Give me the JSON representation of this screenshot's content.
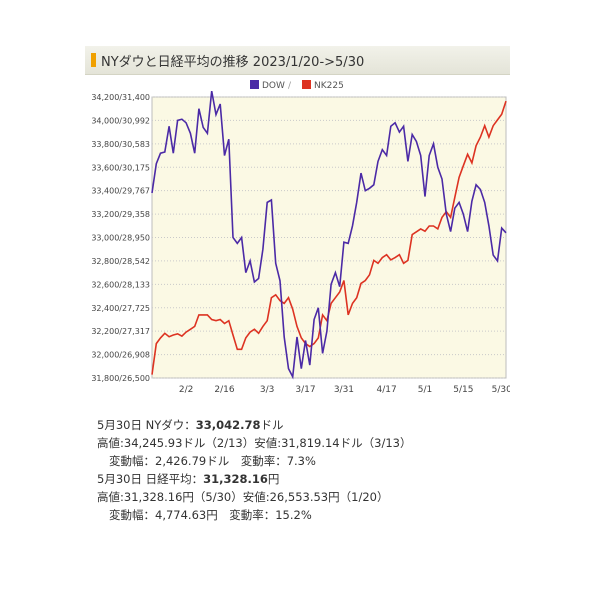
{
  "header": {
    "title": "NYダウと日経平均の推移 2023/1/20->5/30"
  },
  "colors": {
    "dow": "#4b2aa6",
    "nk": "#dd3322",
    "plot_bg": "#fbf9e4",
    "grid": "#c9c9c9"
  },
  "chart_data": {
    "type": "line",
    "legend": {
      "placement": "top-center",
      "dow_label": "DOW",
      "separator": "/",
      "nk_label": "NK225"
    },
    "y_ticks": [
      "31,800/26,500",
      "32,000/26,908",
      "32,200/27,317",
      "32,400/27,725",
      "32,600/28,133",
      "32,800/28,542",
      "33,000/28,950",
      "33,200/29,358",
      "33,400/29,767",
      "33,600/30,175",
      "33,800/30,583",
      "34,000/30,992",
      "34,200/31,400"
    ],
    "ylim": [
      31800,
      34200
    ],
    "x_ticks": [
      "2/2",
      "2/16",
      "3/3",
      "3/17",
      "3/31",
      "4/17",
      "5/1",
      "5/15",
      "5/30"
    ],
    "x_tick_index": [
      8,
      17,
      27,
      36,
      45,
      55,
      64,
      73,
      82
    ],
    "series": [
      {
        "name": "DOW",
        "values": [
          33380,
          33630,
          33720,
          33730,
          33950,
          33720,
          34000,
          34010,
          33980,
          33890,
          33720,
          34100,
          33940,
          33890,
          34250,
          34050,
          34140,
          33700,
          33840,
          33000,
          32950,
          33000,
          32700,
          32800,
          32620,
          32650,
          32900,
          33300,
          33320,
          32780,
          32630,
          32150,
          31880,
          31810,
          32150,
          31880,
          32120,
          31910,
          32300,
          32400,
          32010,
          32200,
          32600,
          32700,
          32580,
          32960,
          32950,
          33100,
          33300,
          33550,
          33400,
          33420,
          33450,
          33650,
          33750,
          33700,
          33950,
          33980,
          33900,
          33950,
          33650,
          33880,
          33820,
          33700,
          33350,
          33700,
          33800,
          33600,
          33500,
          33200,
          33050,
          33250,
          33300,
          33200,
          33050,
          33310,
          33450,
          33410,
          33300,
          33100,
          32850,
          32800,
          33080,
          33040
        ]
      },
      {
        "name": "NK225",
        "values": [
          26560,
          27100,
          27200,
          27280,
          27220,
          27250,
          27270,
          27230,
          27300,
          27350,
          27400,
          27600,
          27600,
          27600,
          27520,
          27500,
          27520,
          27450,
          27500,
          27250,
          27000,
          27000,
          27200,
          27300,
          27350,
          27280,
          27400,
          27500,
          27900,
          27950,
          27850,
          27800,
          27900,
          27700,
          27400,
          27200,
          27100,
          27050,
          27100,
          27200,
          27600,
          27500,
          27800,
          27900,
          28000,
          28200,
          27600,
          27800,
          27900,
          28150,
          28200,
          28300,
          28550,
          28500,
          28600,
          28650,
          28560,
          28600,
          28650,
          28500,
          28550,
          29000,
          29050,
          29100,
          29060,
          29150,
          29150,
          29100,
          29300,
          29400,
          29300,
          29650,
          30000,
          30200,
          30400,
          30250,
          30550,
          30700,
          30900,
          30700,
          30900,
          31000,
          31100,
          31328
        ]
      }
    ]
  },
  "summary": {
    "dow_line": "5月30日 NYダウ：",
    "dow_value": "33,042.78",
    "dow_unit": "ドル",
    "dow_range": "高値:34,245.93ドル（2/13）安値:31,819.14ドル（3/13）",
    "dow_change": "変動幅：2,426.79ドル　変動率：7.3%",
    "nk_line": "5月30日 日経平均：",
    "nk_value": "31,328.16",
    "nk_unit": "円",
    "nk_range": "高値:31,328.16円（5/30）安値:26,553.53円（1/20）",
    "nk_change": "変動幅：4,774.63円　変動率：15.2%"
  }
}
